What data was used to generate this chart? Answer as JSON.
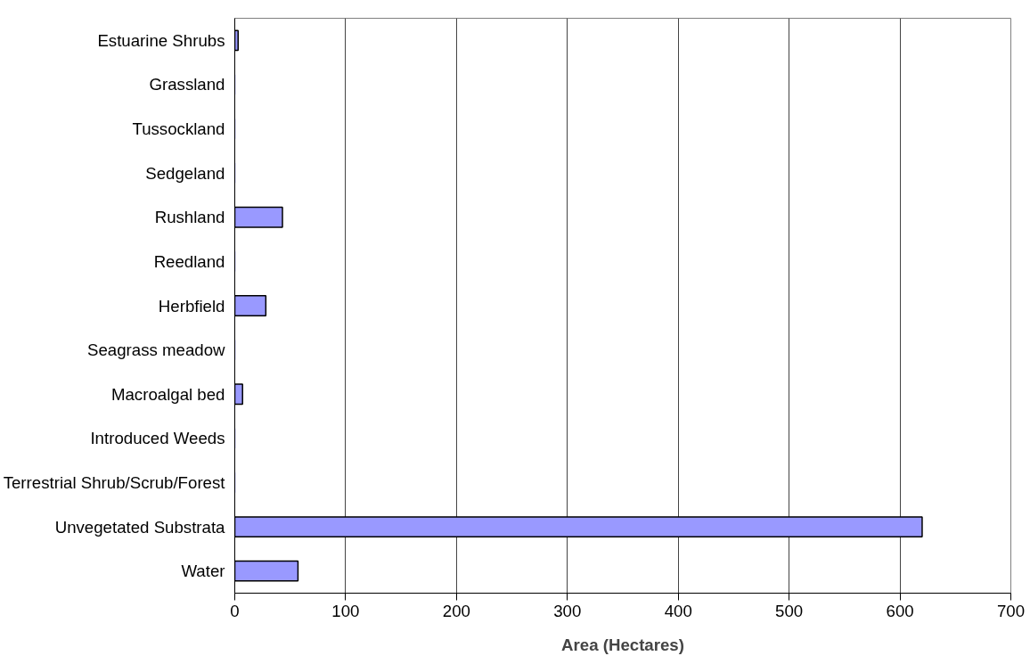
{
  "chart_data": {
    "type": "bar",
    "orientation": "horizontal",
    "xlabel": "Area (Hectares)",
    "categories": [
      "Estuarine Shrubs",
      "Grassland",
      "Tussockland",
      "Sedgeland",
      "Rushland",
      "Reedland",
      "Herbfield",
      "Seagrass meadow",
      "Macroalgal bed",
      "Introduced Weeds",
      "Terrestrial Shrub/Scrub/Forest",
      "Unvegetated Substrata",
      "Water"
    ],
    "values": [
      3,
      0,
      0,
      0,
      43,
      0,
      28,
      0,
      7,
      0,
      0,
      620,
      57
    ],
    "color": "#9999ff",
    "xlim": [
      0,
      700
    ],
    "xticks": [
      0,
      100,
      200,
      300,
      400,
      500,
      600,
      700
    ],
    "grid": "x"
  }
}
